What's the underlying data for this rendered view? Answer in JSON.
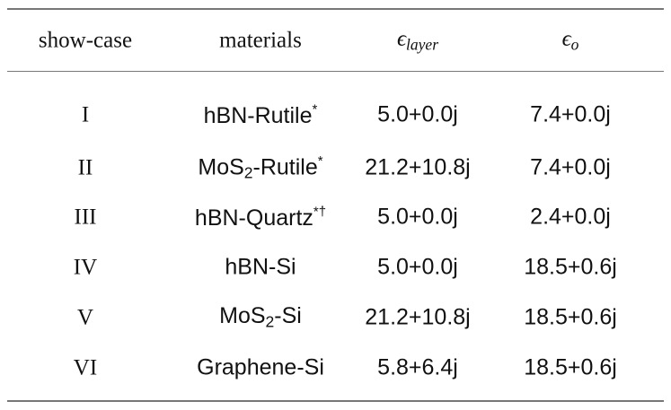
{
  "table": {
    "header": [
      {
        "text": "show-case"
      },
      {
        "text": "materials"
      },
      {
        "symbol": "ϵ",
        "subscript": "layer"
      },
      {
        "symbol": "ϵ",
        "subscript": "o"
      }
    ],
    "rows": [
      {
        "case": "I",
        "material": {
          "name": "hBN-Rutile",
          "sup": "*"
        },
        "eps_layer": "5.0+0.0j",
        "eps_o": "7.4+0.0j"
      },
      {
        "case": "II",
        "material": {
          "name": "MoS",
          "sub": "2",
          "rest": "-Rutile",
          "sup": "*"
        },
        "eps_layer": "21.2+10.8j",
        "eps_o": "7.4+0.0j"
      },
      {
        "case": "III",
        "material": {
          "name": "hBN-Quartz",
          "sup": "*†"
        },
        "eps_layer": "5.0+0.0j",
        "eps_o": "2.4+0.0j"
      },
      {
        "case": "IV",
        "material": {
          "name": "hBN-Si"
        },
        "eps_layer": "5.0+0.0j",
        "eps_o": "18.5+0.6j"
      },
      {
        "case": "V",
        "material": {
          "name": "MoS",
          "sub": "2",
          "rest": "-Si"
        },
        "eps_layer": "21.2+10.8j",
        "eps_o": "18.5+0.6j"
      },
      {
        "case": "VI",
        "material": {
          "name": "Graphene-Si"
        },
        "eps_layer": "5.8+6.4j",
        "eps_o": "18.5+0.6j"
      }
    ]
  }
}
